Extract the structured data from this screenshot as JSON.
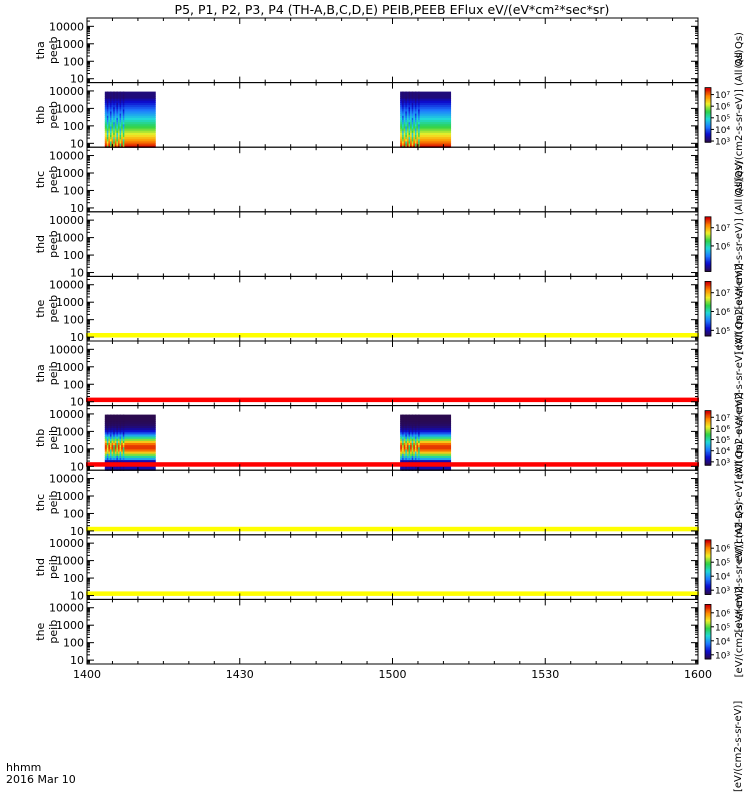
{
  "chart_data": {
    "type": "heatmap",
    "title": "P5, P1, P2, P3, P4 (TH-A,B,C,D,E) PEIB,PEEB EFlux eV/(eV*cm²*sec*sr)",
    "time_axis": {
      "ticks": [
        "1400",
        "1430",
        "1500",
        "1530",
        "1600"
      ],
      "tick_minutes": [
        0,
        30,
        60,
        90,
        120
      ],
      "range_minutes": [
        0,
        120
      ],
      "label_line1": "hhmm",
      "label_line2": "2016 Mar 10"
    },
    "energy_axis": {
      "scale": "log",
      "range_eV": [
        6,
        30000
      ],
      "ticks": [
        "10",
        "100",
        "1000",
        "10000"
      ],
      "tick_values": [
        10,
        100,
        1000,
        10000
      ]
    },
    "colorscale": [
      "#2b0a4d",
      "#0c0ccf",
      "#1e7dff",
      "#21d8d8",
      "#2fd247",
      "#f0f02a",
      "#ff8a00",
      "#d40000"
    ],
    "panels": [
      {
        "probe": "tha",
        "instrument": "peeb",
        "ylabel": [
          "tha",
          "peeb"
        ],
        "colorbar": null,
        "side_label": "(All Qs)",
        "data_blocks": [],
        "bar": null
      },
      {
        "probe": "thb",
        "instrument": "peeb",
        "ylabel": [
          "thb",
          "peeb"
        ],
        "colorbar": {
          "ticks": [
            "10⁷",
            "10⁶",
            "10⁵",
            "10⁴",
            "10³"
          ],
          "tick_exponents": [
            7,
            6,
            5,
            4,
            3
          ],
          "range_exponents": [
            2.9,
            7.6
          ]
        },
        "side_label": "[eV/(cm2-s-sr-eV)] (All Qs)",
        "data_blocks": [
          {
            "start_min": 3.5,
            "end_min": 13.5,
            "profile": "electron"
          },
          {
            "start_min": 61.5,
            "end_min": 71.5,
            "profile": "electron"
          }
        ],
        "bar": null
      },
      {
        "probe": "thc",
        "instrument": "peeb",
        "ylabel": [
          "thc",
          "peeb"
        ],
        "colorbar": null,
        "side_label": "(All Qs)",
        "data_blocks": [],
        "bar": null
      },
      {
        "probe": "thd",
        "instrument": "peeb",
        "ylabel": [
          "thd",
          "peeb"
        ],
        "colorbar": {
          "ticks": [
            "10⁷",
            "10⁶"
          ],
          "tick_exponents": [
            7,
            6
          ],
          "range_exponents": [
            4.6,
            7.6
          ]
        },
        "side_label": "[eV/(cm2-s-sr-eV)] (All Qs)",
        "data_blocks": [],
        "bar": null
      },
      {
        "probe": "the",
        "instrument": "peeb",
        "ylabel": [
          "the",
          "peeb"
        ],
        "colorbar": {
          "ticks": [
            "10⁷",
            "10⁶",
            "10⁵"
          ],
          "tick_exponents": [
            7,
            6,
            5
          ],
          "range_exponents": [
            4.7,
            7.6
          ]
        },
        "side_label": "[eV/(cm2-s-sr-eV)]",
        "data_blocks": [],
        "bar": {
          "color": "#ffff00"
        }
      },
      {
        "probe": "tha",
        "instrument": "peib",
        "ylabel": [
          "tha",
          "peib"
        ],
        "colorbar": null,
        "side_label": "eV/(cm2-s-sr-eV) (All Qs)",
        "data_blocks": [],
        "bar": {
          "color": "#ff0000"
        }
      },
      {
        "probe": "thb",
        "instrument": "peib",
        "ylabel": [
          "thb",
          "peib"
        ],
        "colorbar": {
          "ticks": [
            "10⁷",
            "10⁶",
            "10⁵",
            "10⁴",
            "10³"
          ],
          "tick_exponents": [
            7,
            6,
            5,
            4,
            3
          ],
          "range_exponents": [
            2.7,
            7.6
          ]
        },
        "side_label": "[eV/(cm2-s-sr-eV)]",
        "data_blocks": [
          {
            "start_min": 3.5,
            "end_min": 13.5,
            "profile": "ion"
          },
          {
            "start_min": 61.5,
            "end_min": 71.5,
            "profile": "ion"
          }
        ],
        "bar": {
          "color": "#ff0000"
        }
      },
      {
        "probe": "thc",
        "instrument": "peib",
        "ylabel": [
          "thc",
          "peib"
        ],
        "colorbar": null,
        "side_label": "eV/(cm2-s-sr-eV) (All Qs)",
        "data_blocks": [],
        "bar": {
          "color": "#ffff00"
        }
      },
      {
        "probe": "thd",
        "instrument": "peib",
        "ylabel": [
          "thd",
          "peib"
        ],
        "colorbar": {
          "ticks": [
            "10⁶",
            "10⁵",
            "10⁴",
            "10³"
          ],
          "tick_exponents": [
            6,
            5,
            4,
            3
          ],
          "range_exponents": [
            2.7,
            6.6
          ]
        },
        "side_label": "[eV/(cm2-s-sr-eV)] (All Qs)",
        "data_blocks": [],
        "bar": {
          "color": "#ffff00"
        }
      },
      {
        "probe": "the",
        "instrument": "peib",
        "ylabel": [
          "the",
          "peib"
        ],
        "colorbar": {
          "ticks": [
            "10⁶",
            "10⁵",
            "10⁴",
            "10³"
          ],
          "tick_exponents": [
            6,
            5,
            4,
            3
          ],
          "range_exponents": [
            2.7,
            6.6
          ]
        },
        "side_label": "[eV/(cm2-s-sr-eV)]",
        "data_blocks": [],
        "bar": null
      }
    ],
    "bottom_label": "[eV/(cm2-s-sr-eV)]"
  }
}
